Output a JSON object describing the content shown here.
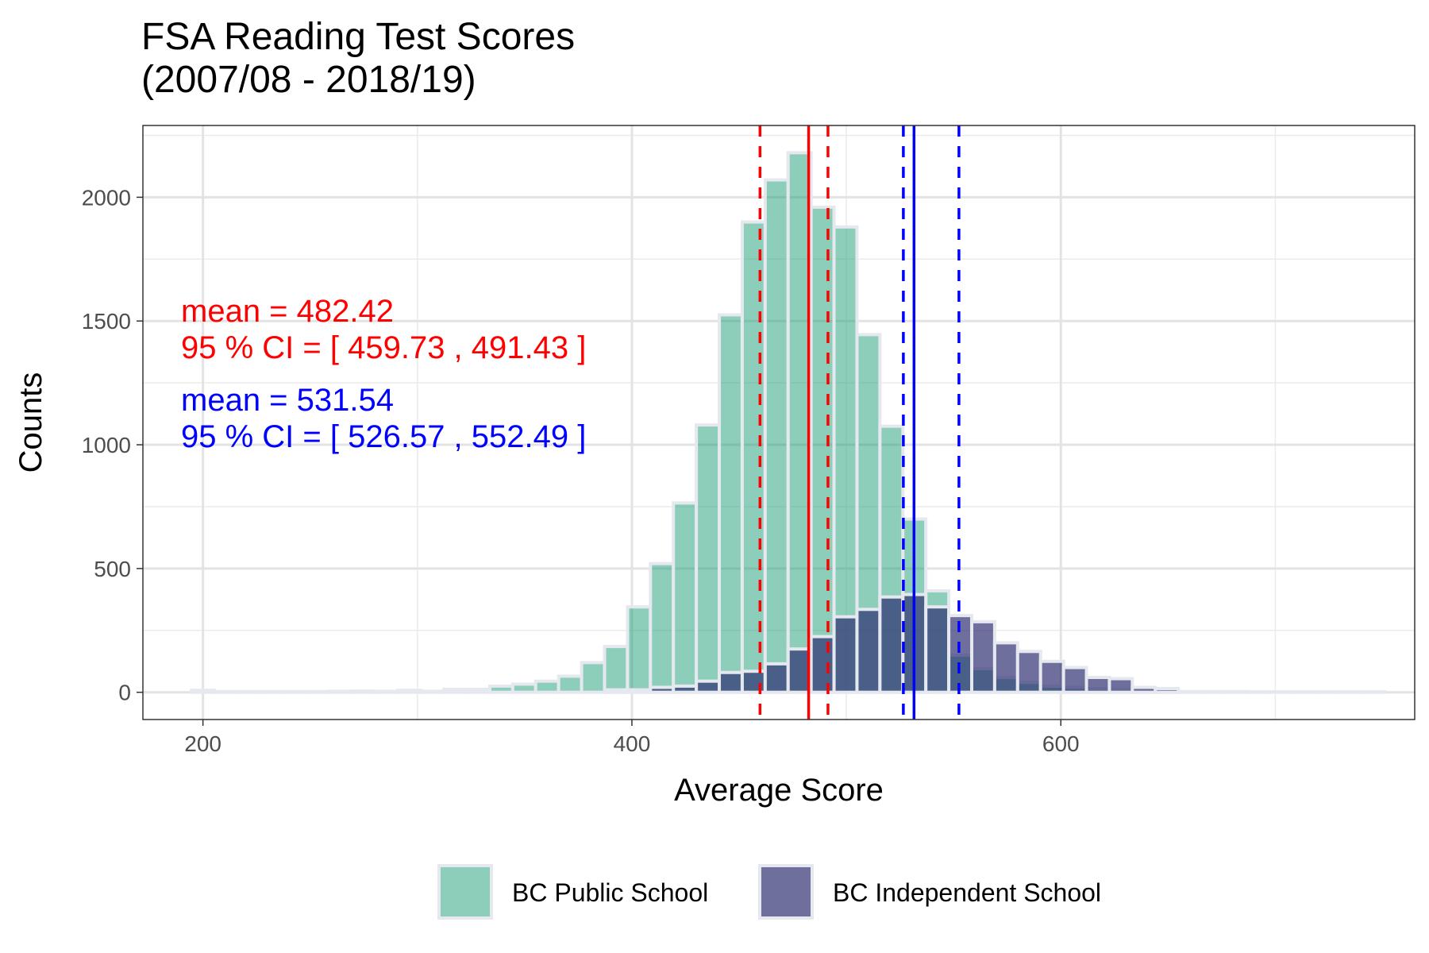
{
  "chart_data": {
    "type": "bar",
    "title_line1": "FSA Reading Test Scores",
    "title_line2": "(2007/08 - 2018/19)",
    "xlabel": "Average Score",
    "ylabel": "Counts",
    "xlim": [
      172,
      765
    ],
    "ylim": [
      -110,
      2290
    ],
    "x_ticks": [
      200,
      400,
      600
    ],
    "y_ticks": [
      0,
      500,
      1000,
      1500,
      2000
    ],
    "grid": true,
    "legend_position": "bottom",
    "bin_width": 10.7,
    "series": [
      {
        "name": "BC Public School",
        "color": "#1b9e77",
        "fill_opacity": 0.5,
        "bins": [
          [
            200.0,
            8
          ],
          [
            210.7,
            3
          ],
          [
            221.4,
            3
          ],
          [
            232.1,
            3
          ],
          [
            242.8,
            3
          ],
          [
            253.5,
            3
          ],
          [
            264.2,
            4
          ],
          [
            274.9,
            5
          ],
          [
            285.6,
            4
          ],
          [
            296.3,
            8
          ],
          [
            307.0,
            4
          ],
          [
            317.7,
            12
          ],
          [
            328.4,
            12
          ],
          [
            339.1,
            25
          ],
          [
            349.8,
            33
          ],
          [
            360.5,
            45
          ],
          [
            371.2,
            65
          ],
          [
            381.9,
            120
          ],
          [
            392.6,
            185
          ],
          [
            403.3,
            345
          ],
          [
            414.0,
            520
          ],
          [
            424.7,
            765
          ],
          [
            435.4,
            1080
          ],
          [
            446.1,
            1525
          ],
          [
            456.8,
            1900
          ],
          [
            467.5,
            2070
          ],
          [
            478.2,
            2180
          ],
          [
            488.9,
            1960
          ],
          [
            499.6,
            1880
          ],
          [
            510.3,
            1445
          ],
          [
            521.0,
            1075
          ],
          [
            531.7,
            700
          ],
          [
            542.4,
            410
          ],
          [
            553.1,
            150
          ],
          [
            563.8,
            95
          ],
          [
            574.5,
            60
          ],
          [
            585.2,
            40
          ],
          [
            595.9,
            25
          ],
          [
            606.6,
            20
          ],
          [
            617.3,
            15
          ],
          [
            628.0,
            10
          ],
          [
            638.7,
            5
          ],
          [
            649.4,
            5
          ],
          [
            660.1,
            3
          ],
          [
            670.8,
            3
          ],
          [
            681.5,
            3
          ],
          [
            692.2,
            2
          ],
          [
            702.9,
            2
          ],
          [
            713.6,
            2
          ],
          [
            724.3,
            2
          ],
          [
            735.0,
            2
          ],
          [
            745.7,
            2
          ]
        ]
      },
      {
        "name": "BC Independent School",
        "color": "#2b2b6e",
        "fill_opacity": 0.68,
        "bins": [
          [
            392.6,
            10
          ],
          [
            403.3,
            10
          ],
          [
            414.0,
            20
          ],
          [
            424.7,
            25
          ],
          [
            435.4,
            45
          ],
          [
            446.1,
            80
          ],
          [
            456.8,
            85
          ],
          [
            467.5,
            115
          ],
          [
            478.2,
            175
          ],
          [
            488.9,
            225
          ],
          [
            499.6,
            305
          ],
          [
            510.3,
            335
          ],
          [
            521.0,
            385
          ],
          [
            531.7,
            395
          ],
          [
            542.4,
            345
          ],
          [
            553.1,
            310
          ],
          [
            563.8,
            285
          ],
          [
            574.5,
            200
          ],
          [
            585.2,
            165
          ],
          [
            595.9,
            125
          ],
          [
            606.6,
            100
          ],
          [
            617.3,
            60
          ],
          [
            628.0,
            55
          ],
          [
            638.7,
            20
          ],
          [
            649.4,
            15
          ]
        ]
      }
    ],
    "vlines": [
      {
        "x": 482.42,
        "color": "#ff0000",
        "style": "solid"
      },
      {
        "x": 459.73,
        "color": "#ff0000",
        "style": "dashed"
      },
      {
        "x": 491.43,
        "color": "#ff0000",
        "style": "dashed"
      },
      {
        "x": 531.54,
        "color": "#0000ff",
        "style": "solid"
      },
      {
        "x": 526.57,
        "color": "#0000ff",
        "style": "dashed"
      },
      {
        "x": 552.49,
        "color": "#0000ff",
        "style": "dashed"
      }
    ],
    "annotations": [
      {
        "text": "mean =  482.42",
        "color": "#ff0000"
      },
      {
        "text": "95 % CI = [ 459.73 , 491.43 ]",
        "color": "#ff0000"
      },
      {
        "text": "mean =  531.54",
        "color": "#0000ff"
      },
      {
        "text": "95 % CI = [ 526.57 , 552.49 ]",
        "color": "#0000ff"
      }
    ]
  }
}
